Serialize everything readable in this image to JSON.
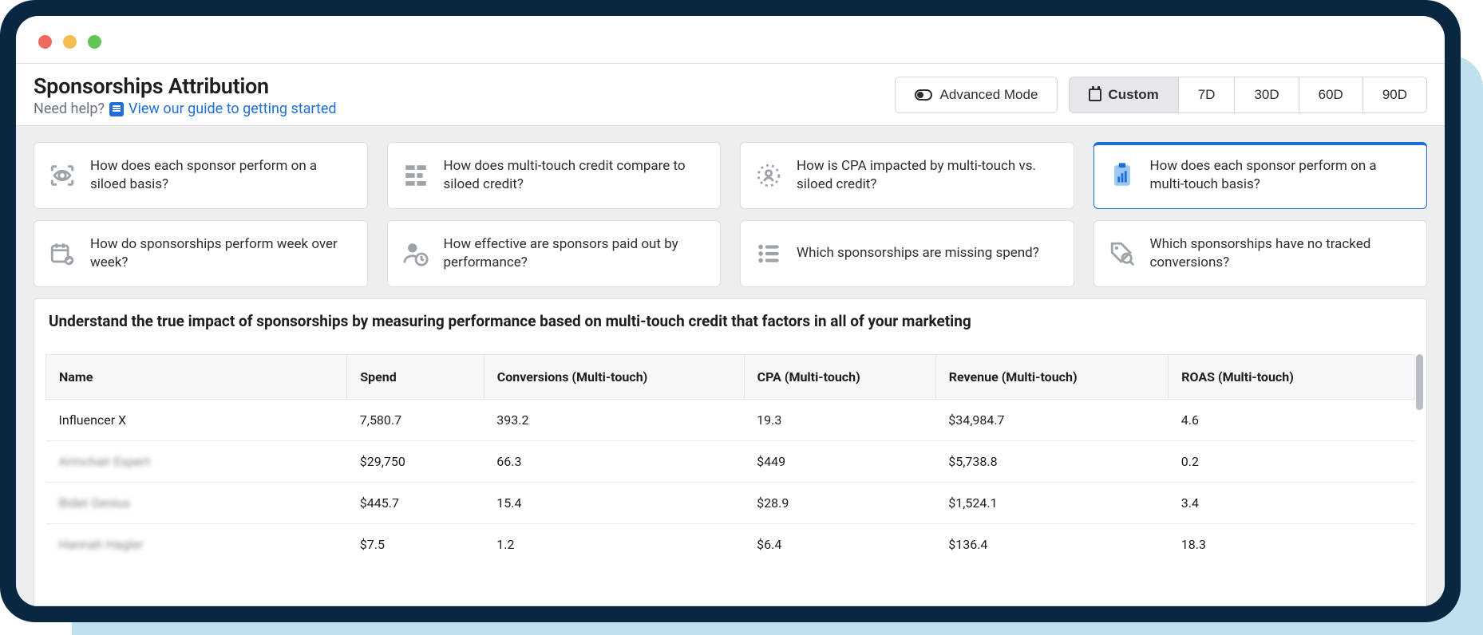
{
  "page": {
    "title": "Sponsorships Attribution",
    "help_prefix": "Need help?",
    "help_link": "View our guide to getting started"
  },
  "controls": {
    "advanced_label": "Advanced Mode",
    "ranges": {
      "custom": "Custom",
      "d7": "7D",
      "d30": "30D",
      "d60": "60D",
      "d90": "90D"
    }
  },
  "cards": {
    "c1": "How does each sponsor perform on a siloed basis?",
    "c2": "How does multi-touch credit compare to siloed credit?",
    "c3": "How is CPA impacted by multi-touch vs. siloed credit?",
    "c4": "How does each sponsor perform on a multi-touch basis?",
    "c5": "How do sponsorships perform week over week?",
    "c6": "How effective are sponsors paid out by performance?",
    "c7": "Which sponsorships are missing spend?",
    "c8": "Which sponsorships have no tracked conversions?"
  },
  "section_title": "Understand the true impact of sponsorships by measuring performance based on multi-touch credit that factors in all of your marketing",
  "table": {
    "columns": {
      "name": "Name",
      "spend": "Spend",
      "conv": "Conversions (Multi-touch)",
      "cpa": "CPA (Multi-touch)",
      "rev": "Revenue (Multi-touch)",
      "roas": "ROAS (Multi-touch)"
    },
    "rows": [
      {
        "name": "Influencer X",
        "spend": "7,580.7",
        "conv": "393.2",
        "cpa": "19.3",
        "rev": "$34,984.7",
        "roas": "4.6",
        "blur": false
      },
      {
        "name": "Armchair Expert",
        "spend": "$29,750",
        "conv": "66.3",
        "cpa": "$449",
        "rev": "$5,738.8",
        "roas": "0.2",
        "blur": true
      },
      {
        "name": "Bidet Genius",
        "spend": "$445.7",
        "conv": "15.4",
        "cpa": "$28.9",
        "rev": "$1,524.1",
        "roas": "3.4",
        "blur": true
      },
      {
        "name": "Hannah Hagler",
        "spend": "$7.5",
        "conv": "1.2",
        "cpa": "$6.4",
        "rev": "$136.4",
        "roas": "18.3",
        "blur": true
      }
    ]
  },
  "colors": {
    "accent": "#1e6fd9",
    "frame": "#0a2742",
    "outer": "#bfe0ee"
  }
}
